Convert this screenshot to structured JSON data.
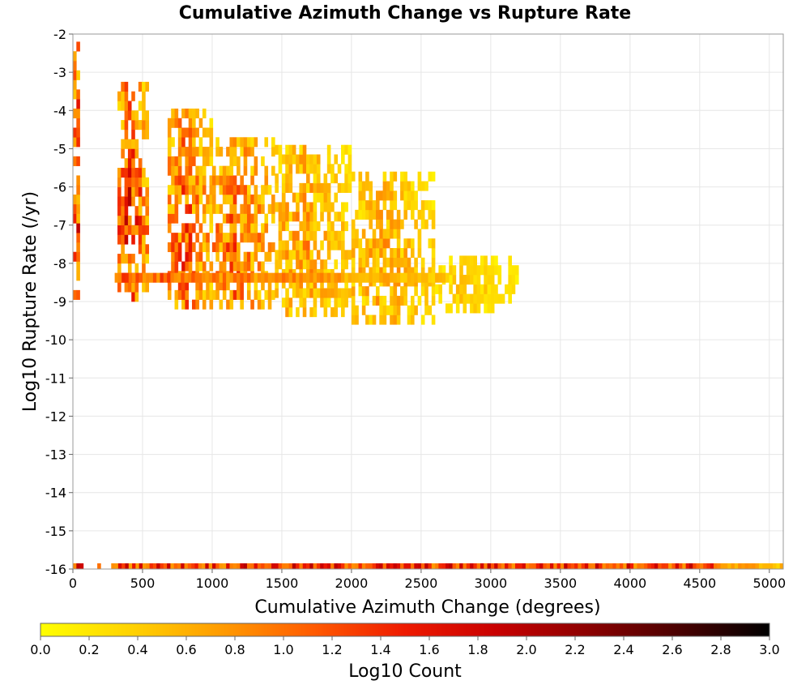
{
  "chart_data": {
    "type": "heatmap",
    "title": "Cumulative Azimuth Change vs Rupture Rate",
    "xlabel": "Cumulative Azimuth Change (degrees)",
    "ylabel": "Log10 Rupture Rate (/yr)",
    "xlim": [
      0,
      5100
    ],
    "ylim": [
      -16,
      -2
    ],
    "xticks": [
      0,
      500,
      1000,
      1500,
      2000,
      2500,
      3000,
      3500,
      4000,
      4500,
      5000
    ],
    "yticks": [
      -2,
      -3,
      -4,
      -5,
      -6,
      -7,
      -8,
      -9,
      -10,
      -11,
      -12,
      -13,
      -14,
      -15,
      -16
    ],
    "grid": true,
    "bin_width_x": 25,
    "bin_height_y": 0.25,
    "colorbar": {
      "label": "Log10 Count",
      "min": 0.0,
      "max": 3.0,
      "ticks": [
        "0.0",
        "0.2",
        "0.4",
        "0.6",
        "0.8",
        "1.0",
        "1.2",
        "1.4",
        "1.6",
        "1.8",
        "2.0",
        "2.2",
        "2.4",
        "2.6",
        "2.8",
        "3.0"
      ],
      "colors": [
        "#ffff00",
        "#ffd200",
        "#ff9a00",
        "#ff5a00",
        "#ee1a00",
        "#c80000",
        "#8c0000",
        "#4a0000",
        "#000000"
      ]
    },
    "clusters": [
      {
        "x": [
          0,
          50
        ],
        "y": [
          -9.2,
          -2.2
        ],
        "peak": 1.8
      },
      {
        "x": [
          320,
          540
        ],
        "y": [
          -9.0,
          -3.4
        ],
        "peak": 1.7
      },
      {
        "x": [
          680,
          1000
        ],
        "y": [
          -9.2,
          -4.0
        ],
        "peak": 1.4
      },
      {
        "x": [
          1000,
          1450
        ],
        "y": [
          -9.2,
          -4.8
        ],
        "peak": 1.3
      },
      {
        "x": [
          1450,
          2000
        ],
        "y": [
          -9.4,
          -5.0
        ],
        "peak": 0.9
      },
      {
        "x": [
          2000,
          2600
        ],
        "y": [
          -9.6,
          -5.6
        ],
        "peak": 0.8
      },
      {
        "x": [
          2600,
          3200
        ],
        "y": [
          -9.3,
          -8.0
        ],
        "peak": 0.5
      }
    ],
    "ridge": {
      "y": -8.5,
      "x": [
        300,
        2700
      ],
      "peak": 1.5
    },
    "floor_row": {
      "y": -16,
      "x": [
        0,
        5100
      ],
      "peak": 2.0
    }
  }
}
